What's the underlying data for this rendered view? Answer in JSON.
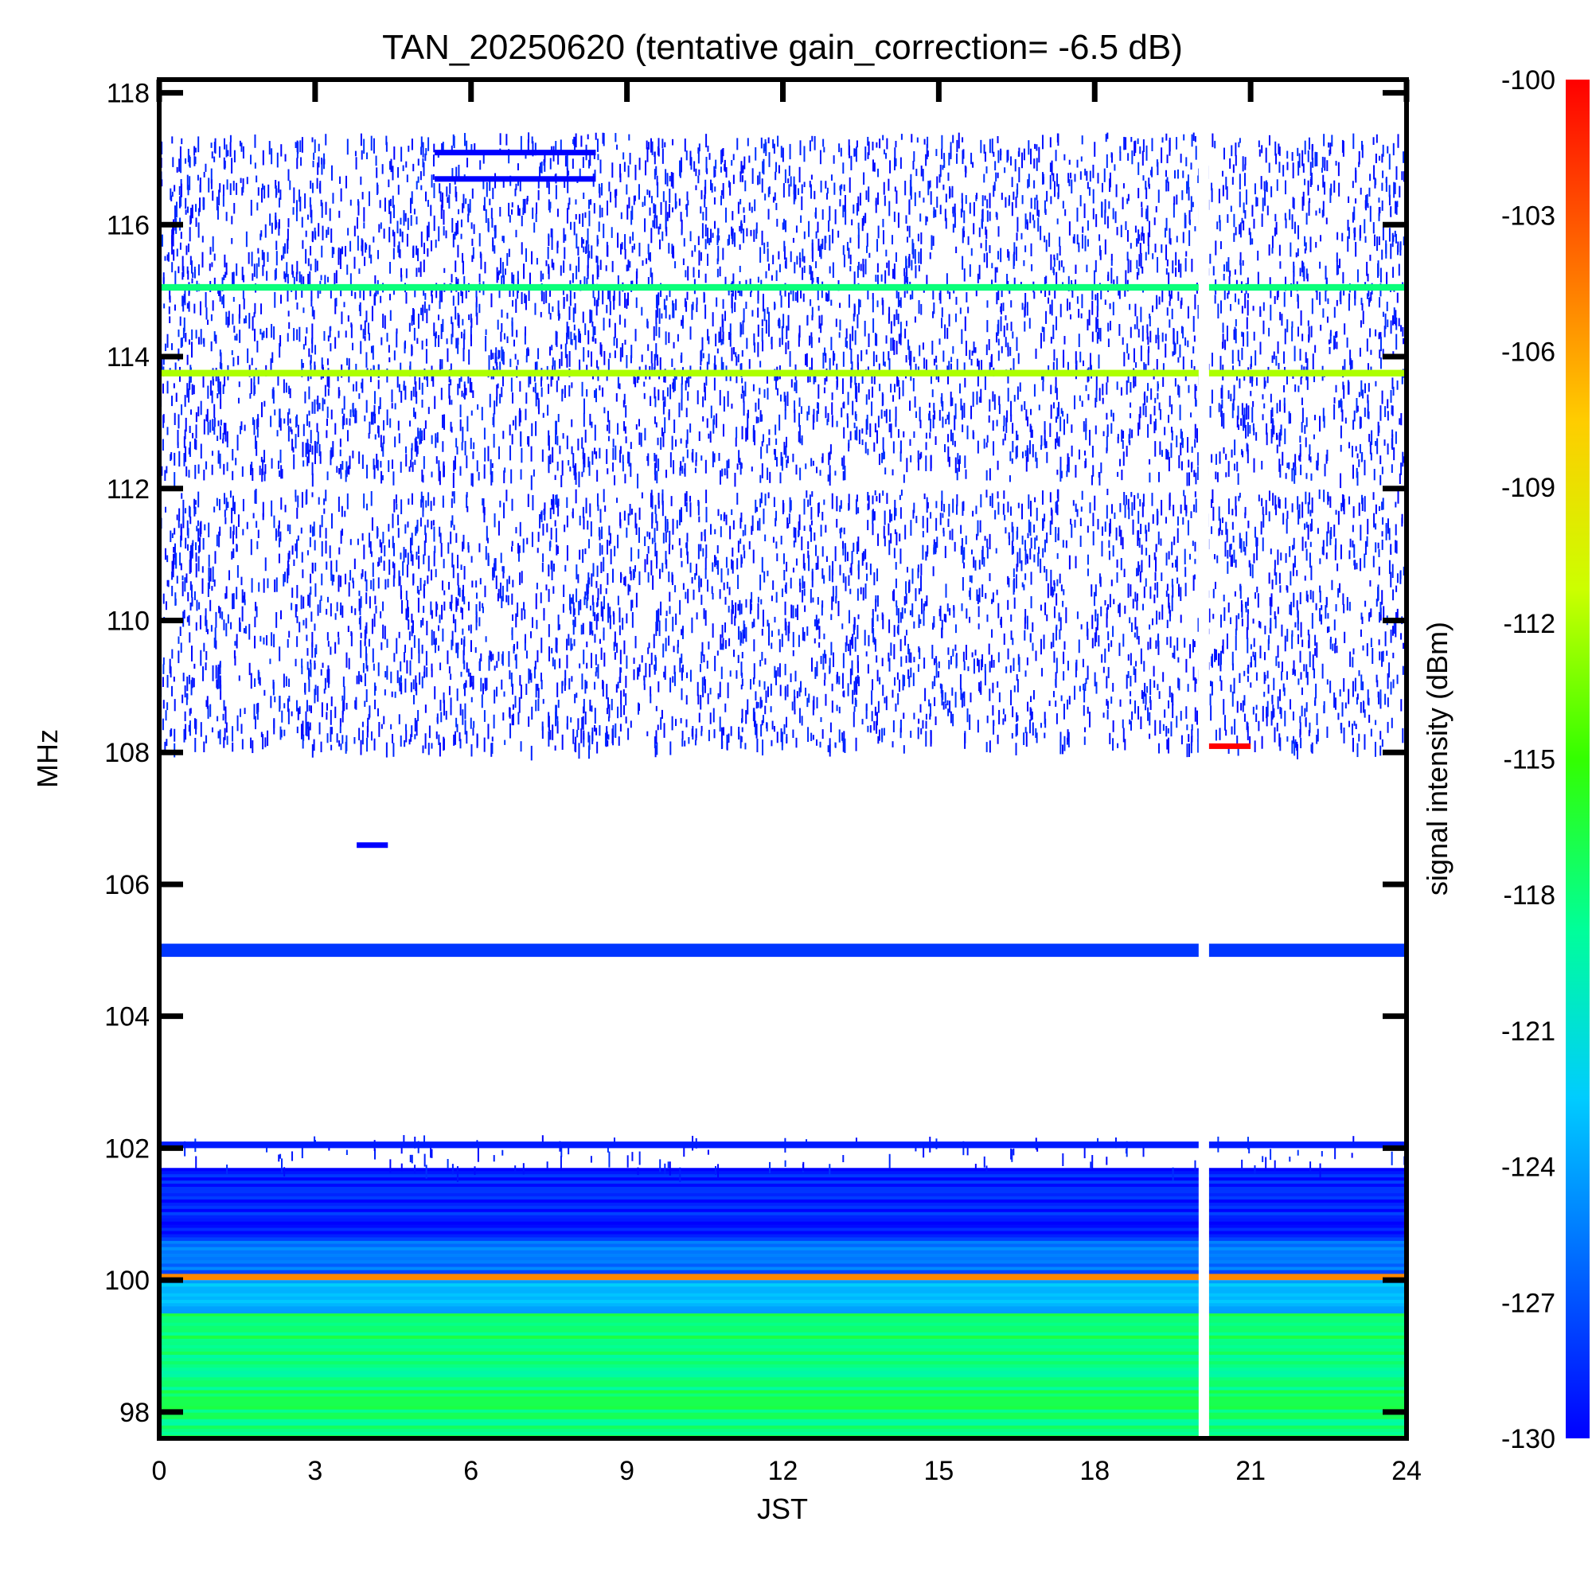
{
  "chart_data": {
    "type": "heatmap",
    "title": "TAN_20250620 (tentative gain_correction= -6.5 dB)",
    "xlabel": "JST",
    "ylabel": "MHz",
    "colorbar_label": "signal intensity (dBm)",
    "xlim": [
      0,
      24
    ],
    "ylim": [
      97.6,
      118.2
    ],
    "x_ticks": [
      0,
      3,
      6,
      9,
      12,
      15,
      18,
      21,
      24
    ],
    "x_tick_labels": [
      "0",
      "3",
      "6",
      "9",
      "12",
      "15",
      "18",
      "21",
      "24"
    ],
    "y_ticks": [
      98,
      100,
      102,
      104,
      106,
      108,
      110,
      112,
      114,
      116,
      118
    ],
    "y_tick_labels": [
      "98",
      "100",
      "102",
      "104",
      "106",
      "108",
      "110",
      "112",
      "114",
      "116",
      "118"
    ],
    "colorbar_range": [
      -130,
      -100
    ],
    "colorbar_ticks": [
      -100,
      -103,
      -106,
      -109,
      -112,
      -115,
      -118,
      -121,
      -124,
      -127,
      -130
    ],
    "colorbar_tick_labels": [
      "-100",
      "-103",
      "-106",
      "-109",
      "-112",
      "-115",
      "-118",
      "-121",
      "-124",
      "-127",
      "-130"
    ],
    "colormap": [
      "#0000ff",
      "#0066ff",
      "#00ccff",
      "#00ff99",
      "#33ff00",
      "#ccff00",
      "#ffcc00",
      "#ff6600",
      "#ff0000"
    ],
    "data_gap_jst": [
      20.0,
      20.2
    ],
    "bands": [
      {
        "freq": [
          97.6,
          99.5
        ],
        "level": -118,
        "pattern": "dense"
      },
      {
        "freq": [
          99.5,
          100.0
        ],
        "level": -123,
        "pattern": "dense"
      },
      {
        "freq": [
          100.0,
          100.1
        ],
        "level": -105,
        "pattern": "line"
      },
      {
        "freq": [
          100.1,
          100.6
        ],
        "level": -126,
        "pattern": "dense"
      },
      {
        "freq": [
          100.6,
          101.7
        ],
        "level": -129,
        "pattern": "dense"
      },
      {
        "freq": [
          101.7,
          102.2
        ],
        "level": -130,
        "pattern": "sparse"
      },
      {
        "freq": [
          102.0,
          102.1
        ],
        "level": -129,
        "pattern": "line"
      },
      {
        "freq": [
          104.9,
          105.1
        ],
        "level": -128,
        "pattern": "line"
      },
      {
        "freq": [
          108.1,
          112.0
        ],
        "level": -130,
        "pattern": "noise"
      },
      {
        "freq": [
          112.2,
          117.4
        ],
        "level": -130,
        "pattern": "noise"
      },
      {
        "freq": [
          113.7,
          113.8
        ],
        "level": -112,
        "pattern": "line"
      },
      {
        "freq": [
          115.0,
          115.1
        ],
        "level": -118,
        "pattern": "line"
      }
    ],
    "events": [
      {
        "jst": [
          20.1,
          21.0
        ],
        "freq": 108.1,
        "level": -100
      },
      {
        "jst": [
          5.3,
          8.4
        ],
        "freq": 117.1,
        "level": -130
      },
      {
        "jst": [
          5.3,
          8.4
        ],
        "freq": 116.7,
        "level": -130
      },
      {
        "jst": [
          3.8,
          4.4
        ],
        "freq": 106.6,
        "level": -130
      }
    ]
  }
}
